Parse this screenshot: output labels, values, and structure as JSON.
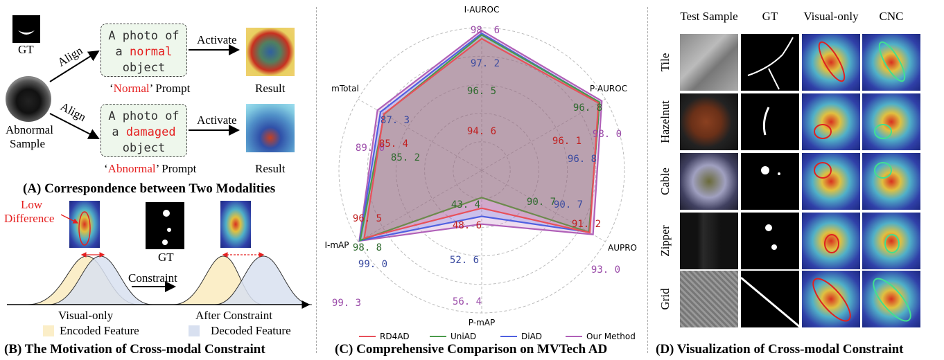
{
  "panelA": {
    "gt_label": "GT",
    "sample_label_1": "Abnormal",
    "sample_label_2": "Sample",
    "align_label_top": "Align",
    "align_label_bottom": "Align",
    "normal_prompt_line1": "A photo of",
    "normal_prompt_pre": "a ",
    "normal_prompt_word": "normal",
    "normal_prompt_line3": "object",
    "abnormal_prompt_line1": "A photo of",
    "abnormal_prompt_pre": "a ",
    "abnormal_prompt_word": "damaged",
    "abnormal_prompt_line3": "object",
    "normal_caption_q1": "‘",
    "normal_caption_word": "Normal",
    "normal_caption_rest": "’ Prompt",
    "abnormal_caption_q1": "‘",
    "abnormal_caption_word": "Abnormal",
    "abnormal_caption_rest": "’ Prompt",
    "activate_top": "Activate",
    "activate_bottom": "Activate",
    "result_top": "Result",
    "result_bottom": "Result",
    "caption": "(A) Correspondence between Two Modalities"
  },
  "panelB": {
    "low_diff_1": "Low",
    "low_diff_2": "Difference",
    "gt_label": "GT",
    "constraint_label": "Constraint",
    "visual_only": "Visual-only",
    "after_constraint": "After Constraint",
    "legend_encoded": "Encoded Feature",
    "legend_decoded": "Decoded Feature",
    "encoded_color": "#fbeec8",
    "decoded_color": "#d8e0f0",
    "caption": "(B) The Motivation of Cross-modal Constraint"
  },
  "chart_data": {
    "type": "radar",
    "axes": [
      "I-AUROC",
      "P-AUROC",
      "AUPRO",
      "P-mAP",
      "I-mAP",
      "mTotal"
    ],
    "series": [
      {
        "name": "RD4AD",
        "color": "#e8505a",
        "values": [
          94.6,
          96.1,
          91.2,
          48.6,
          96.5,
          85.4
        ]
      },
      {
        "name": "UniAD",
        "color": "#4a9a4a",
        "values": [
          96.5,
          96.8,
          90.7,
          43.4,
          98.8,
          85.2
        ]
      },
      {
        "name": "DiAD",
        "color": "#5060e0",
        "values": [
          97.2,
          96.8,
          90.7,
          52.6,
          99.0,
          87.3
        ]
      },
      {
        "name": "Our Method",
        "color": "#b060b8",
        "values": [
          98.6,
          98.0,
          93.0,
          56.4,
          99.3,
          89.0
        ]
      }
    ],
    "value_labels": [
      {
        "text": "98. 6",
        "color": "#9a4aa8"
      },
      {
        "text": "97. 2",
        "color": "#3a4aa0"
      },
      {
        "text": "96. 5",
        "color": "#2e6a2e"
      },
      {
        "text": "94. 6",
        "color": "#c02020"
      },
      {
        "text": "96. 8",
        "color": "#2e6a2e"
      },
      {
        "text": "98. 0",
        "color": "#9a4aa8"
      },
      {
        "text": "96. 1",
        "color": "#c02020"
      },
      {
        "text": "96. 8",
        "color": "#3a4aa0"
      },
      {
        "text": "93. 0",
        "color": "#9a4aa8"
      },
      {
        "text": "90. 7",
        "color": "#3a4aa0"
      },
      {
        "text": "91. 2",
        "color": "#c02020"
      },
      {
        "text": "90. 7",
        "color": "#2e6a2e"
      },
      {
        "text": "56. 4",
        "color": "#9a4aa8"
      },
      {
        "text": "52. 6",
        "color": "#3a4aa0"
      },
      {
        "text": "48. 6",
        "color": "#c02020"
      },
      {
        "text": "43. 4",
        "color": "#2e6a2e"
      },
      {
        "text": "99. 3",
        "color": "#9a4aa8"
      },
      {
        "text": "99. 0",
        "color": "#3a4aa0"
      },
      {
        "text": "98. 8",
        "color": "#2e6a2e"
      },
      {
        "text": "96. 5",
        "color": "#c02020"
      },
      {
        "text": "89. 0",
        "color": "#9a4aa8"
      },
      {
        "text": "87. 3",
        "color": "#3a4aa0"
      },
      {
        "text": "85. 4",
        "color": "#c02020"
      },
      {
        "text": "85. 2",
        "color": "#2e6a2e"
      }
    ],
    "legend_placement": "bottom",
    "caption": "(C) Comprehensive Comparison on MVTech AD"
  },
  "panelD": {
    "col_headers": [
      "Test Sample",
      "GT",
      "Visual-only",
      "CNC"
    ],
    "rows": [
      "Tile",
      "Hazelnut",
      "Cable",
      "Zipper",
      "Grid"
    ],
    "caption": "(D) Visualization of Cross-modal Constraint",
    "visual_only_ring_color": "#e02020",
    "cnc_ring_color": "#40e090"
  }
}
